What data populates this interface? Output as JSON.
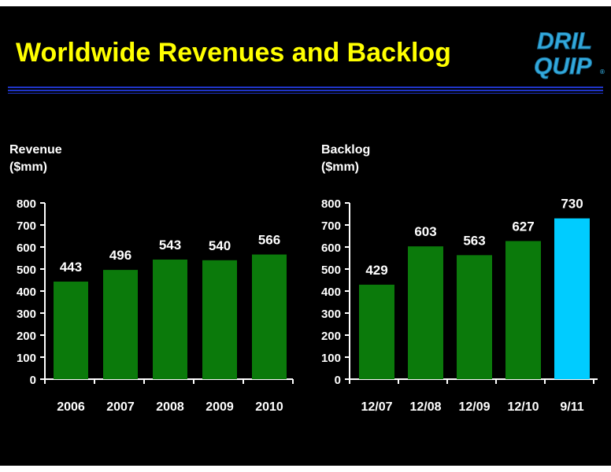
{
  "slide": {
    "title": "Worldwide Revenues and Backlog",
    "logo_line1": "DRIL",
    "logo_line2": "QUIP",
    "logo_mark": "®"
  },
  "colors": {
    "background": "#000000",
    "title": "#ffff00",
    "bar_green": "#0b7a0b",
    "bar_highlight": "#00ccff",
    "text": "#ffffff",
    "rule": "#1f35c8",
    "logo": "#33aadd"
  },
  "chart_data": [
    {
      "type": "bar",
      "ylabel_line1": "Revenue",
      "ylabel_line2": "($mm)",
      "categories": [
        "2006",
        "2007",
        "2008",
        "2009",
        "2010"
      ],
      "values": [
        443,
        496,
        543,
        540,
        566
      ],
      "data_labels": [
        "443",
        "496",
        "543",
        "540",
        "566"
      ],
      "ylim": [
        0,
        800
      ],
      "yticks": [
        0,
        100,
        200,
        300,
        400,
        500,
        600,
        700,
        800
      ],
      "highlight_index": -1,
      "grid": false,
      "legend": "none"
    },
    {
      "type": "bar",
      "ylabel_line1": "Backlog",
      "ylabel_line2": "($mm)",
      "categories": [
        "12/07",
        "12/08",
        "12/09",
        "12/10",
        "9/11"
      ],
      "values": [
        429,
        603,
        563,
        627,
        730
      ],
      "data_labels": [
        "429",
        "603",
        "563",
        "627",
        "730"
      ],
      "ylim": [
        0,
        800
      ],
      "yticks": [
        0,
        100,
        200,
        300,
        400,
        500,
        600,
        700,
        800
      ],
      "highlight_index": 4,
      "grid": false,
      "legend": "none"
    }
  ]
}
